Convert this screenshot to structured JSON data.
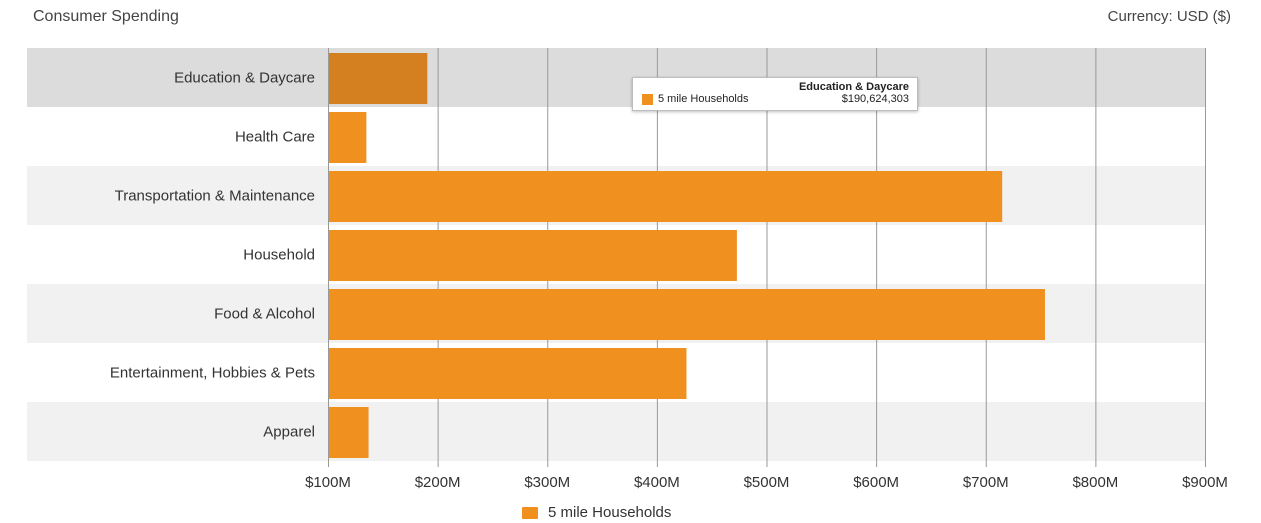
{
  "header": {
    "title": "Consumer Spending",
    "currency": "Currency: USD ($)"
  },
  "colors": {
    "bar": "#f0901e",
    "bar_highlight": "#d58020",
    "band_alt": "#f1f1f1",
    "band_highlight": "#dcdcdc",
    "grid": "#999999"
  },
  "chart_data": {
    "type": "bar",
    "orientation": "horizontal",
    "title": "Consumer Spending",
    "categories": [
      "Education & Daycare",
      "Health Care",
      "Transportation & Maintenance",
      "Household",
      "Food & Alcohol",
      "Entertainment, Hobbies & Pets",
      "Apparel"
    ],
    "series": [
      {
        "name": "5 mile Households",
        "values": [
          190624303,
          135000000,
          715000000,
          473000000,
          754000000,
          427000000,
          137000000
        ]
      }
    ],
    "xlim": [
      100000000,
      900000000
    ],
    "xticks": [
      100000000,
      200000000,
      300000000,
      400000000,
      500000000,
      600000000,
      700000000,
      800000000,
      900000000
    ],
    "xtick_labels": [
      "$100M",
      "$200M",
      "$300M",
      "$400M",
      "$500M",
      "$600M",
      "$700M",
      "$800M",
      "$900M"
    ],
    "highlighted_category": "Education & Daycare",
    "grid": true,
    "legend_position": "bottom-center"
  },
  "tooltip": {
    "title": "Education & Daycare",
    "series": "5 mile Households",
    "value": "$190,624,303"
  },
  "legend": {
    "label": "5 mile Households"
  }
}
